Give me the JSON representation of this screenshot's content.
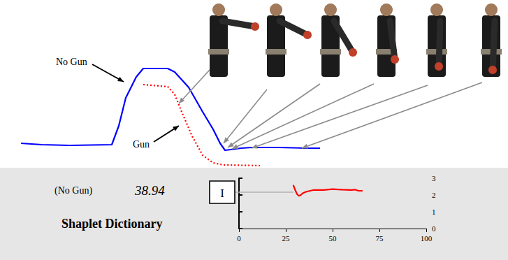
{
  "chart_data": [
    {
      "type": "line",
      "tick_labels": false,
      "grid": false,
      "xlim": [
        30,
        460
      ],
      "ylim": [
        0,
        160
      ],
      "series": [
        {
          "name": "No Gun",
          "color": "#0000ff",
          "line_style": "solid",
          "x": [
            30,
            60,
            100,
            160,
            170,
            180,
            195,
            205,
            240,
            250,
            270,
            290,
            305,
            315,
            322,
            330,
            345,
            360,
            400,
            440,
            458
          ],
          "values": [
            45,
            43,
            42,
            43,
            70,
            110,
            140,
            152,
            152,
            147,
            125,
            90,
            65,
            45,
            35,
            36,
            38,
            39,
            39,
            38,
            38
          ]
        },
        {
          "name": "Gun",
          "color": "#ff0000",
          "line_style": "dotted",
          "x": [
            205,
            240,
            250,
            260,
            275,
            290,
            305,
            320,
            372
          ],
          "values": [
            129,
            126,
            115,
            90,
            55,
            28,
            17,
            14,
            13
          ]
        }
      ]
    },
    {
      "type": "line",
      "title": "Shaplet Dictionary",
      "annotations": [
        "(No Gun)",
        "38.94",
        "I"
      ],
      "grid": false,
      "xlim": [
        0,
        100
      ],
      "xticks": [
        0,
        25,
        50,
        75,
        100
      ],
      "ylim": [
        0,
        3
      ],
      "yticks": [
        0,
        1,
        2,
        3
      ],
      "series": [
        {
          "color": "#ff0000",
          "line_style": "solid",
          "x": [
            29,
            30,
            31,
            32,
            33,
            34,
            36,
            38,
            40,
            45,
            50,
            55,
            60,
            62,
            63,
            64,
            66
          ],
          "values": [
            2.6,
            2.3,
            2.05,
            1.95,
            2.0,
            2.1,
            2.2,
            2.25,
            2.3,
            2.3,
            2.35,
            2.32,
            2.3,
            2.32,
            2.28,
            2.25,
            2.25
          ]
        }
      ]
    }
  ]
}
